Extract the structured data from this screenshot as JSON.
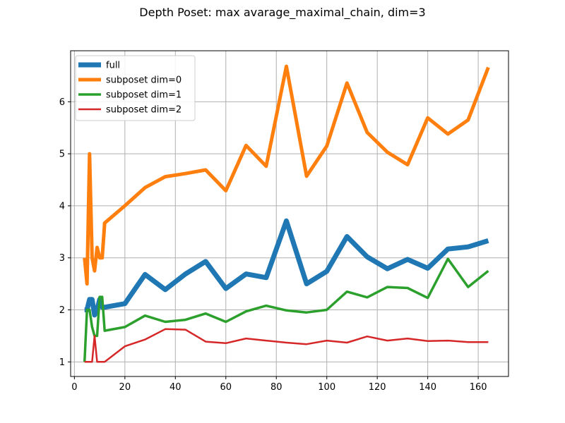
{
  "chart_data": {
    "type": "line",
    "title": "Depth Poset: max avarage_maximal_chain, dim=3",
    "xlabel": "",
    "ylabel": "",
    "xlim": [
      -1.5,
      172
    ],
    "ylim": [
      0.72,
      6.98
    ],
    "xticks": [
      0,
      20,
      40,
      60,
      80,
      100,
      120,
      140,
      160
    ],
    "yticks": [
      1,
      2,
      3,
      4,
      5,
      6
    ],
    "grid": true,
    "legend_position": "upper-left",
    "series": [
      {
        "name": "full",
        "color": "#1f77b4",
        "x": [
          4,
          5,
          6,
          7,
          8,
          9,
          10,
          11,
          12,
          20,
          28,
          36,
          44,
          52,
          60,
          68,
          76,
          84,
          92,
          100,
          108,
          116,
          124,
          132,
          140,
          148,
          156,
          164
        ],
        "y": [
          2.0,
          2.0,
          2.2,
          2.2,
          1.9,
          2.0,
          2.2,
          2.05,
          2.05,
          2.12,
          2.68,
          2.39,
          2.69,
          2.93,
          2.41,
          2.69,
          2.62,
          3.71,
          2.5,
          2.74,
          3.41,
          3.02,
          2.79,
          2.97,
          2.8,
          3.17,
          3.21,
          3.33
        ]
      },
      {
        "name": "subposet dim=0",
        "color": "#ff7f0e",
        "x": [
          4,
          5,
          6,
          7,
          8,
          9,
          10,
          11,
          12,
          20,
          28,
          36,
          44,
          52,
          60,
          68,
          76,
          84,
          92,
          100,
          108,
          116,
          124,
          132,
          140,
          148,
          156,
          164
        ],
        "y": [
          3.0,
          2.5,
          5.0,
          3.0,
          2.75,
          3.2,
          3.0,
          3.0,
          3.67,
          4.0,
          4.35,
          4.56,
          4.62,
          4.69,
          4.29,
          5.16,
          4.76,
          6.68,
          4.57,
          5.15,
          6.36,
          5.41,
          5.03,
          4.79,
          5.69,
          5.38,
          5.65,
          6.66
        ]
      },
      {
        "name": "subposet dim=1",
        "color": "#2ca02c",
        "x": [
          4,
          5,
          6,
          7,
          8,
          9,
          10,
          11,
          12,
          20,
          28,
          36,
          44,
          52,
          60,
          68,
          76,
          84,
          92,
          100,
          108,
          116,
          124,
          132,
          140,
          148,
          156,
          164
        ],
        "y": [
          1.0,
          2.0,
          2.0,
          1.67,
          1.5,
          1.5,
          2.25,
          2.25,
          1.6,
          1.67,
          1.89,
          1.77,
          1.81,
          1.93,
          1.77,
          1.97,
          2.08,
          1.99,
          1.95,
          2.0,
          2.35,
          2.24,
          2.44,
          2.42,
          2.23,
          2.98,
          2.44,
          2.75
        ]
      },
      {
        "name": "subposet dim=2",
        "color": "#d62728",
        "x": [
          4,
          5,
          6,
          7,
          8,
          9,
          10,
          11,
          12,
          20,
          28,
          36,
          44,
          52,
          60,
          68,
          76,
          84,
          92,
          100,
          108,
          116,
          124,
          132,
          140,
          148,
          156,
          164
        ],
        "y": [
          1.0,
          1.0,
          1.0,
          1.0,
          1.5,
          1.0,
          1.0,
          1.0,
          1.0,
          1.3,
          1.43,
          1.63,
          1.62,
          1.39,
          1.36,
          1.45,
          1.41,
          1.37,
          1.34,
          1.41,
          1.37,
          1.49,
          1.41,
          1.45,
          1.4,
          1.41,
          1.38,
          1.38
        ]
      }
    ]
  }
}
